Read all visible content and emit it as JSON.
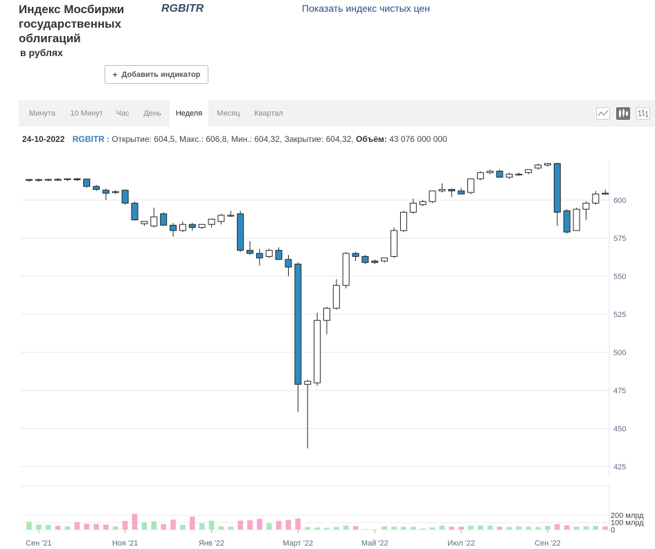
{
  "header": {
    "title": "Индекс Мосбиржи государственных облигаций",
    "subtitle": "в рублях",
    "ticker": "RGBITR",
    "clean_price_link": "Показать индекс чистых цен",
    "add_indicator_label": "Добавить индикатор",
    "add_indicator_icon": "plus-icon"
  },
  "tabs": [
    {
      "label": "Минута",
      "active": false
    },
    {
      "label": "10 Минут",
      "active": false
    },
    {
      "label": "Час",
      "active": false
    },
    {
      "label": "День",
      "active": false
    },
    {
      "label": "Неделя",
      "active": true
    },
    {
      "label": "Месяц",
      "active": false
    },
    {
      "label": "Квартал",
      "active": false
    }
  ],
  "view_buttons": [
    {
      "icon": "line-chart-icon",
      "active": false
    },
    {
      "icon": "candlestick-icon",
      "active": true
    },
    {
      "icon": "ohlc-bars-icon",
      "active": false
    }
  ],
  "info": {
    "date": "24-10-2022",
    "symbol": "RGBITR :",
    "text": "Открытие: 604,5, Макс.: 606,8, Мин.: 604,32, Закрытие: 604,32,",
    "volume_label": "Объём:",
    "volume_value": "43 076 000 000"
  },
  "colors": {
    "up_fill": "#ffffff",
    "down_fill": "#2e8bc0",
    "volume_up": "#a8e6b8",
    "volume_down": "#f7a8c4",
    "axis_text": "#5a6a80"
  },
  "chart_data": {
    "type": "candlestick",
    "price_axis": {
      "ylim": [
        425,
        612
      ],
      "ticks": [
        "425",
        "450",
        "475",
        "500",
        "525",
        "550",
        "575",
        "600"
      ]
    },
    "volume_axis": {
      "ticks": [
        "200 млрд",
        "100 млрд",
        "0"
      ]
    },
    "x_labels": [
      {
        "label": "Сен '21",
        "index": 1
      },
      {
        "label": "Ноя '21",
        "index": 10
      },
      {
        "label": "Янв '22",
        "index": 19
      },
      {
        "label": "Март '22",
        "index": 28
      },
      {
        "label": "Май '22",
        "index": 36
      },
      {
        "label": "Июл '22",
        "index": 45
      },
      {
        "label": "Сен '22",
        "index": 54
      }
    ],
    "candles": [
      {
        "o": 613,
        "h": 614,
        "l": 612,
        "c": 613.5,
        "v": 110
      },
      {
        "o": 613,
        "h": 614,
        "l": 612,
        "c": 613.5,
        "v": 70
      },
      {
        "o": 613.2,
        "h": 614,
        "l": 612.5,
        "c": 613.6,
        "v": 65
      },
      {
        "o": 613.6,
        "h": 614.5,
        "l": 612.8,
        "c": 613.2,
        "v": 55
      },
      {
        "o": 613.5,
        "h": 614,
        "l": 612.5,
        "c": 614,
        "v": 45
      },
      {
        "o": 614,
        "h": 614.5,
        "l": 612.5,
        "c": 613.3,
        "v": 105
      },
      {
        "o": 613.8,
        "h": 614,
        "l": 608,
        "c": 609,
        "v": 80
      },
      {
        "o": 609,
        "h": 610,
        "l": 606,
        "c": 607,
        "v": 78
      },
      {
        "o": 606.5,
        "h": 607.5,
        "l": 600,
        "c": 604.5,
        "v": 70
      },
      {
        "o": 605,
        "h": 606.5,
        "l": 604,
        "c": 605.5,
        "v": 45
      },
      {
        "o": 606.5,
        "h": 607,
        "l": 597,
        "c": 598,
        "v": 120
      },
      {
        "o": 598,
        "h": 599,
        "l": 586.5,
        "c": 587,
        "v": 220
      },
      {
        "o": 584.5,
        "h": 586,
        "l": 583,
        "c": 586,
        "v": 100
      },
      {
        "o": 583,
        "h": 595,
        "l": 582,
        "c": 589,
        "v": 115
      },
      {
        "o": 591,
        "h": 592,
        "l": 583,
        "c": 583.5,
        "v": 75
      },
      {
        "o": 583.5,
        "h": 585,
        "l": 576,
        "c": 580,
        "v": 140
      },
      {
        "o": 580,
        "h": 586,
        "l": 579,
        "c": 584,
        "v": 65
      },
      {
        "o": 584,
        "h": 585,
        "l": 580,
        "c": 582,
        "v": 180
      },
      {
        "o": 582,
        "h": 584,
        "l": 581,
        "c": 584,
        "v": 90
      },
      {
        "o": 584,
        "h": 586,
        "l": 582,
        "c": 587.5,
        "v": 125
      },
      {
        "o": 586,
        "h": 591,
        "l": 584,
        "c": 590,
        "v": 45
      },
      {
        "o": 590,
        "h": 593,
        "l": 589,
        "c": 590,
        "v": 40
      },
      {
        "o": 591,
        "h": 593,
        "l": 566,
        "c": 567,
        "v": 125
      },
      {
        "o": 567,
        "h": 573,
        "l": 564,
        "c": 565,
        "v": 130
      },
      {
        "o": 565,
        "h": 568,
        "l": 557,
        "c": 562,
        "v": 150
      },
      {
        "o": 563,
        "h": 568,
        "l": 562,
        "c": 567,
        "v": 90
      },
      {
        "o": 567,
        "h": 569,
        "l": 561,
        "c": 561,
        "v": 120
      },
      {
        "o": 561,
        "h": 564,
        "l": 550,
        "c": 556,
        "v": 135
      },
      {
        "o": 558,
        "h": 559,
        "l": 461,
        "c": 479,
        "v": 155
      },
      {
        "o": 479,
        "h": 482,
        "l": 437,
        "c": 481,
        "v": 35
      },
      {
        "o": 480,
        "h": 526,
        "l": 478,
        "c": 521,
        "v": 30
      },
      {
        "o": 521,
        "h": 530,
        "l": 512,
        "c": 529,
        "v": 25
      },
      {
        "o": 529,
        "h": 548,
        "l": 528,
        "c": 544,
        "v": 35
      },
      {
        "o": 544,
        "h": 566,
        "l": 542,
        "c": 565,
        "v": 55
      },
      {
        "o": 565,
        "h": 566,
        "l": 560,
        "c": 563,
        "v": 50
      },
      {
        "o": 563,
        "h": 564,
        "l": 558,
        "c": 559,
        "v": 5
      },
      {
        "o": 560,
        "h": 561,
        "l": 558,
        "c": 559,
        "v": 5
      },
      {
        "o": 560,
        "h": 562,
        "l": 559,
        "c": 562,
        "v": 45
      },
      {
        "o": 563,
        "h": 582,
        "l": 562,
        "c": 580,
        "v": 40
      },
      {
        "o": 580,
        "h": 593,
        "l": 579,
        "c": 592,
        "v": 40
      },
      {
        "o": 592,
        "h": 601,
        "l": 591,
        "c": 598,
        "v": 40
      },
      {
        "o": 597,
        "h": 600,
        "l": 596,
        "c": 599,
        "v": 15
      },
      {
        "o": 599,
        "h": 606,
        "l": 598,
        "c": 606,
        "v": 30
      },
      {
        "o": 606,
        "h": 611,
        "l": 605,
        "c": 607,
        "v": 55
      },
      {
        "o": 607,
        "h": 607.5,
        "l": 602,
        "c": 606,
        "v": 40
      },
      {
        "o": 606,
        "h": 608,
        "l": 605,
        "c": 604,
        "v": 40
      },
      {
        "o": 605,
        "h": 614,
        "l": 604,
        "c": 614,
        "v": 55
      },
      {
        "o": 614,
        "h": 619,
        "l": 613,
        "c": 618,
        "v": 60
      },
      {
        "o": 618,
        "h": 620,
        "l": 617,
        "c": 619,
        "v": 55
      },
      {
        "o": 619,
        "h": 620,
        "l": 614.5,
        "c": 615,
        "v": 40
      },
      {
        "o": 615,
        "h": 618,
        "l": 614,
        "c": 617,
        "v": 35
      },
      {
        "o": 617,
        "h": 618,
        "l": 616,
        "c": 617,
        "v": 45
      },
      {
        "o": 618,
        "h": 620,
        "l": 617,
        "c": 620,
        "v": 40
      },
      {
        "o": 621,
        "h": 624,
        "l": 620,
        "c": 623,
        "v": 35
      },
      {
        "o": 623,
        "h": 624.5,
        "l": 622,
        "c": 624,
        "v": 50
      },
      {
        "o": 624,
        "h": 624.5,
        "l": 583,
        "c": 592,
        "v": 75
      },
      {
        "o": 593,
        "h": 594,
        "l": 578,
        "c": 579,
        "v": 60
      },
      {
        "o": 580,
        "h": 595,
        "l": 580,
        "c": 594,
        "v": 40
      },
      {
        "o": 594,
        "h": 599,
        "l": 587,
        "c": 598,
        "v": 45
      },
      {
        "o": 598,
        "h": 606,
        "l": 597,
        "c": 604,
        "v": 50
      },
      {
        "o": 604.5,
        "h": 606.8,
        "l": 604.32,
        "c": 604.32,
        "v": 43
      }
    ]
  }
}
